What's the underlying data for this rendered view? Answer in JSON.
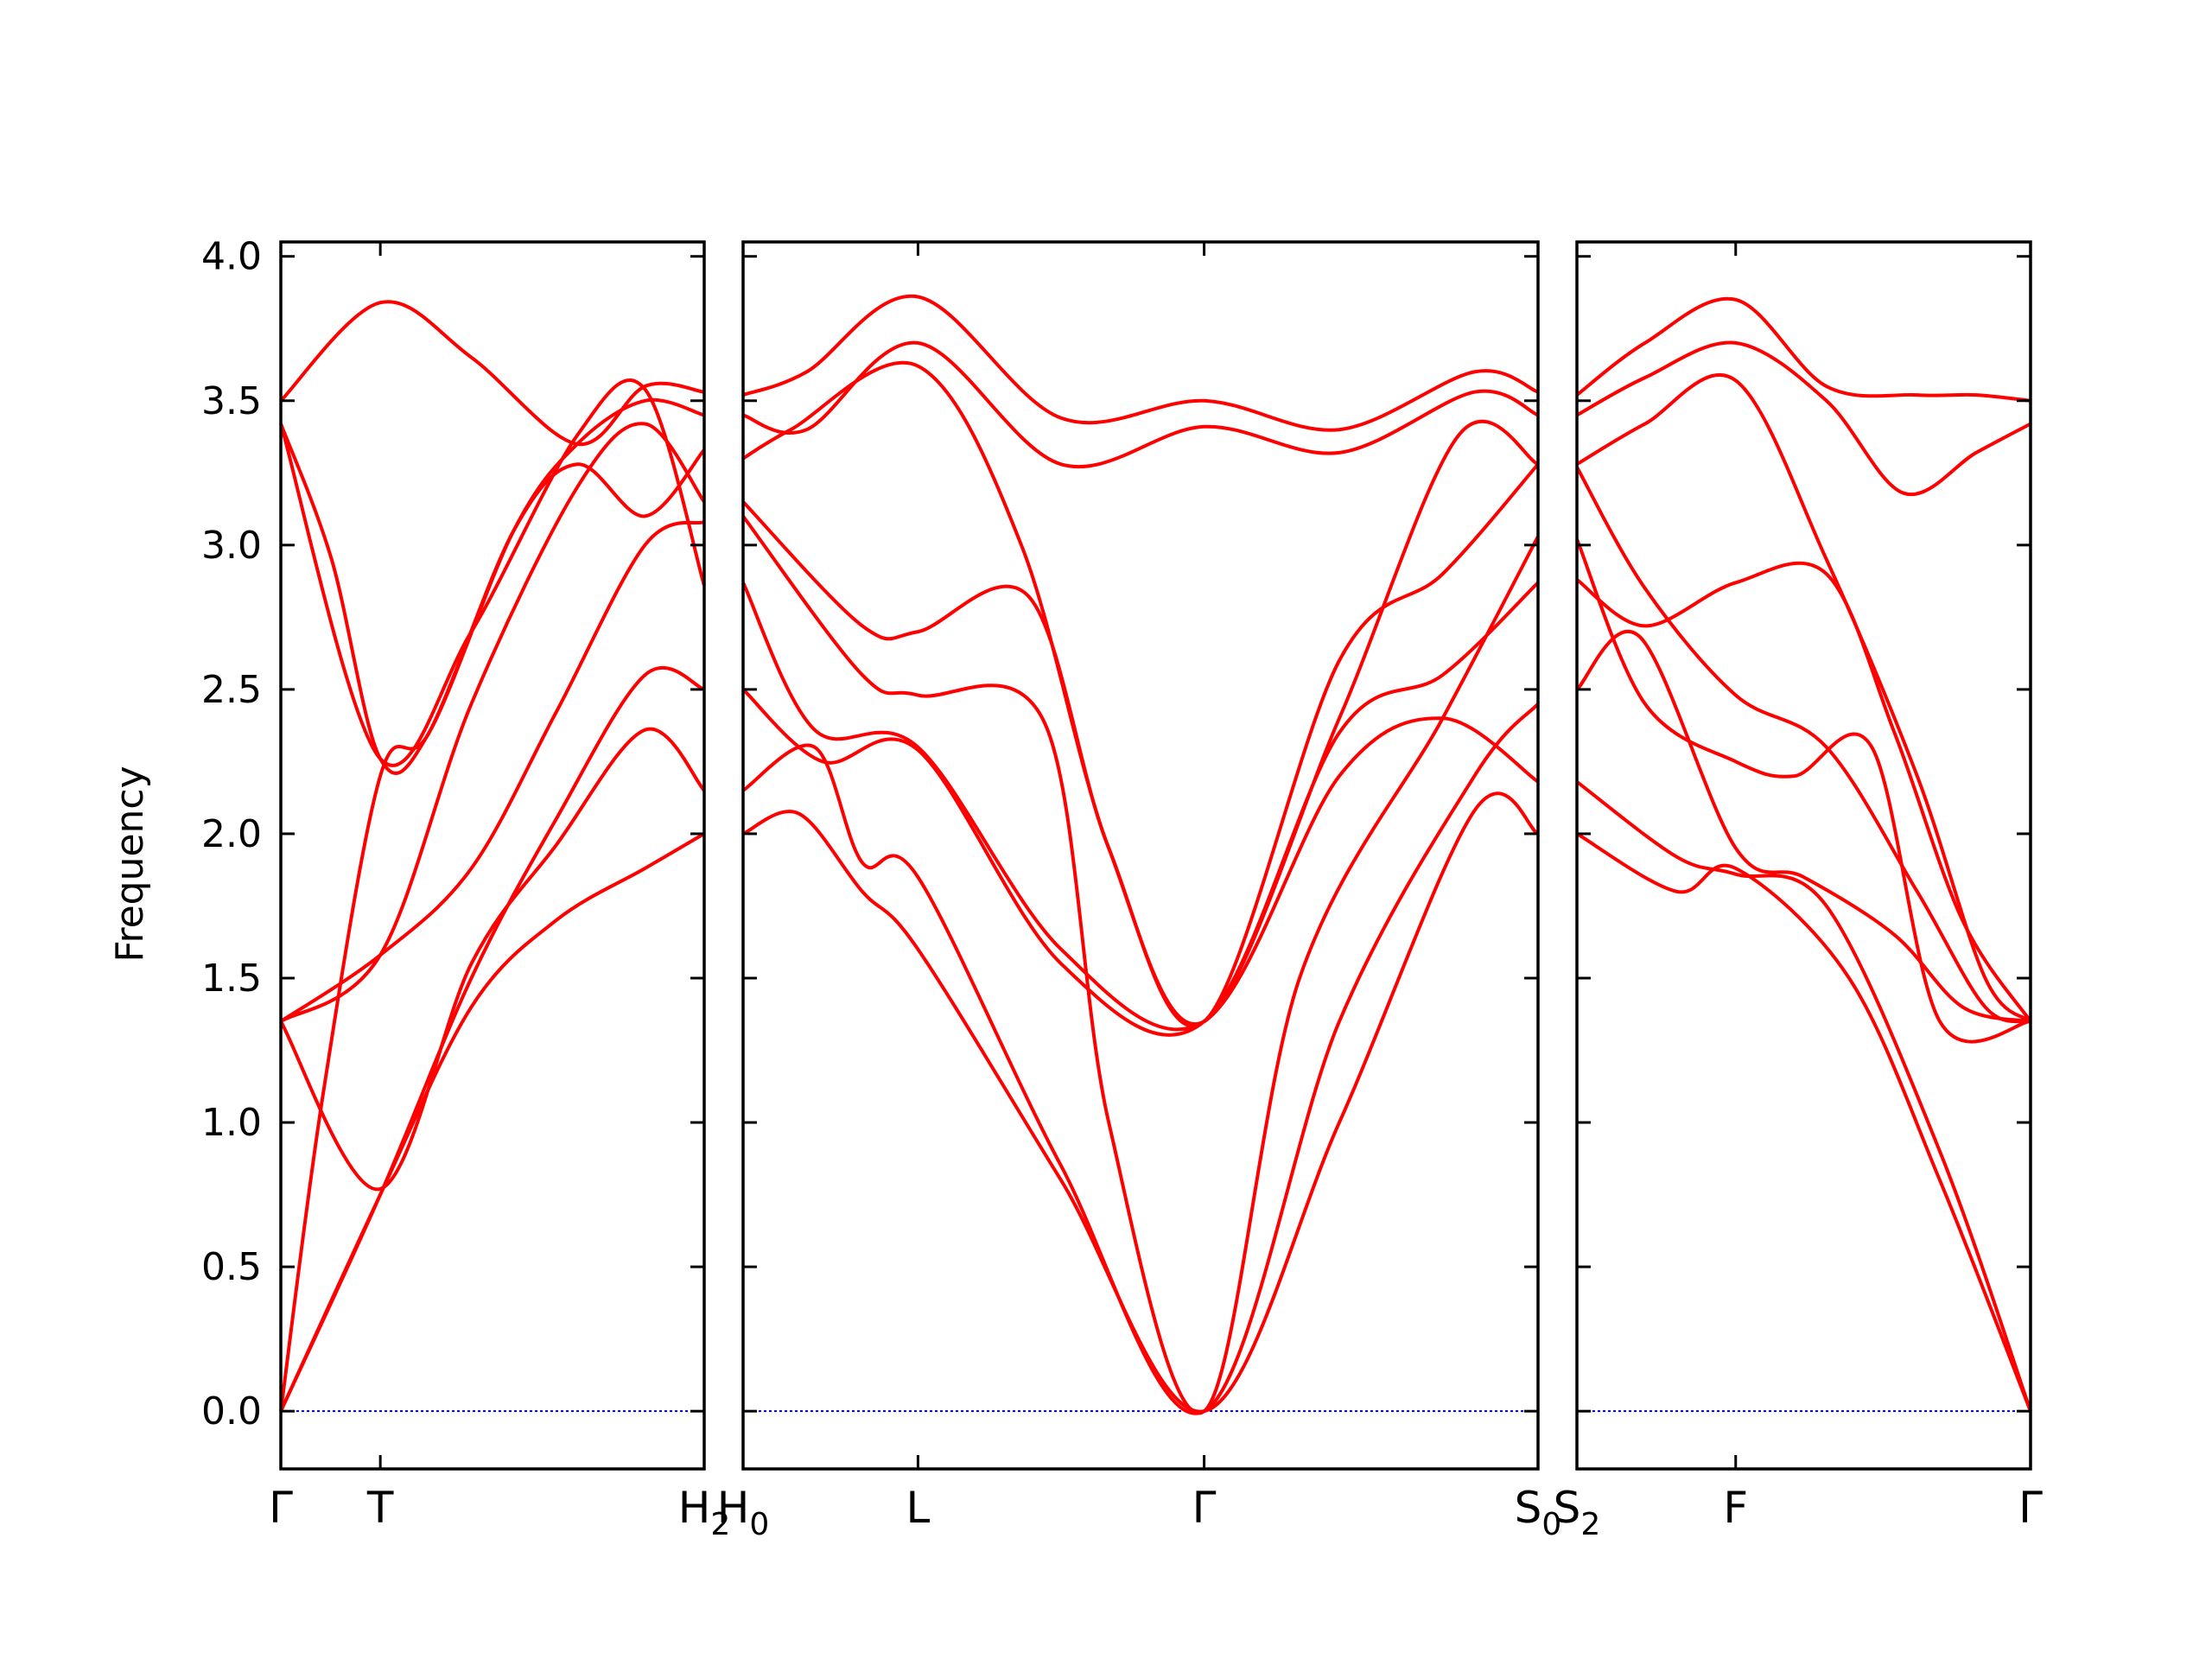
{
  "chart_data": {
    "type": "line",
    "title": "",
    "ylabel": "Frequency",
    "ylim": [
      -0.2,
      4.05
    ],
    "yticks": [
      "0.0",
      "0.5",
      "1.0",
      "1.5",
      "2.0",
      "2.5",
      "3.0",
      "3.5",
      "4.0"
    ],
    "colors": {
      "band": "#ff0000",
      "zero_line": "#0000cc",
      "frame": "#000000"
    },
    "grid": false,
    "panels": [
      {
        "name": "Γ-T-H2",
        "xlim": [
          0,
          1
        ],
        "xticks": [
          {
            "x": 0,
            "label": "Γ",
            "sub": ""
          },
          {
            "x": 0.235,
            "label": "T",
            "sub": ""
          },
          {
            "x": 1,
            "label": "H",
            "sub": "2"
          }
        ],
        "bands": [
          [
            [
              0,
              0
            ],
            [
              0.235,
              0.75
            ],
            [
              0.45,
              1.5
            ],
            [
              0.65,
              2.05
            ],
            [
              0.86,
              2.55
            ],
            [
              1,
              2.5
            ]
          ],
          [
            [
              0,
              0
            ],
            [
              0.235,
              0.75
            ],
            [
              0.45,
              1.4
            ],
            [
              0.65,
              1.7
            ],
            [
              0.86,
              1.88
            ],
            [
              1,
              2.0
            ]
          ],
          [
            [
              0,
              1.35
            ],
            [
              0.235,
              0.77
            ],
            [
              0.45,
              1.55
            ],
            [
              0.65,
              1.96
            ],
            [
              0.86,
              2.36
            ],
            [
              1,
              2.15
            ]
          ],
          [
            [
              0,
              1.35
            ],
            [
              0.235,
              1.58
            ],
            [
              0.45,
              1.88
            ],
            [
              0.65,
              2.42
            ],
            [
              0.86,
              3.0
            ],
            [
              1,
              3.08
            ]
          ],
          [
            [
              0,
              0
            ],
            [
              0.1,
              1.1
            ],
            [
              0.235,
              2.2
            ],
            [
              0.35,
              2.35
            ],
            [
              0.55,
              3.05
            ],
            [
              0.7,
              3.28
            ],
            [
              0.86,
              3.1
            ],
            [
              1,
              3.33
            ]
          ],
          [
            [
              0,
              3.42
            ],
            [
              0.12,
              2.95
            ],
            [
              0.235,
              2.26
            ],
            [
              0.35,
              2.35
            ],
            [
              0.55,
              3.05
            ],
            [
              0.7,
              3.35
            ],
            [
              0.86,
              3.5
            ],
            [
              1,
              3.45
            ]
          ],
          [
            [
              0,
              3.5
            ],
            [
              0.235,
              3.84
            ],
            [
              0.45,
              3.65
            ],
            [
              0.7,
              3.35
            ],
            [
              0.86,
              3.55
            ],
            [
              1,
              3.53
            ]
          ],
          [
            [
              0,
              1.35
            ],
            [
              0.235,
              1.58
            ],
            [
              0.45,
              2.45
            ],
            [
              0.7,
              3.2
            ],
            [
              0.86,
              3.42
            ],
            [
              1,
              3.15
            ]
          ],
          [
            [
              0,
              3.42
            ],
            [
              0.235,
              2.26
            ],
            [
              0.45,
              2.7
            ],
            [
              0.7,
              3.38
            ],
            [
              0.86,
              3.54
            ],
            [
              1,
              2.86
            ]
          ]
        ]
      },
      {
        "name": "H0-L-Γ-S0",
        "xlim": [
          0,
          1
        ],
        "xticks": [
          {
            "x": 0,
            "label": "H",
            "sub": "0"
          },
          {
            "x": 0.22,
            "label": "L",
            "sub": ""
          },
          {
            "x": 0.58,
            "label": "Γ",
            "sub": ""
          },
          {
            "x": 1,
            "label": "S",
            "sub": "0"
          }
        ],
        "bands": [
          [
            [
              0,
              2.0
            ],
            [
              0.07,
              2.07
            ],
            [
              0.15,
              1.8
            ],
            [
              0.22,
              1.6
            ],
            [
              0.4,
              0.8
            ],
            [
              0.58,
              0
            ],
            [
              0.75,
              1.0
            ],
            [
              0.92,
              2.08
            ],
            [
              1,
              2.0
            ]
          ],
          [
            [
              0,
              2.15
            ],
            [
              0.09,
              2.3
            ],
            [
              0.15,
              1.9
            ],
            [
              0.22,
              1.85
            ],
            [
              0.4,
              0.85
            ],
            [
              0.58,
              0
            ],
            [
              0.75,
              1.35
            ],
            [
              0.92,
              2.2
            ],
            [
              1,
              2.45
            ]
          ],
          [
            [
              0,
              2.5
            ],
            [
              0.1,
              2.25
            ],
            [
              0.22,
              2.29
            ],
            [
              0.4,
              1.55
            ],
            [
              0.58,
              1.35
            ],
            [
              0.75,
              2.35
            ],
            [
              0.88,
              2.55
            ],
            [
              1,
              2.87
            ]
          ],
          [
            [
              0,
              2.87
            ],
            [
              0.09,
              2.36
            ],
            [
              0.22,
              2.3
            ],
            [
              0.4,
              1.6
            ],
            [
              0.58,
              1.35
            ],
            [
              0.75,
              2.2
            ],
            [
              0.88,
              2.4
            ],
            [
              1,
              2.18
            ]
          ],
          [
            [
              0,
              3.1
            ],
            [
              0.15,
              2.55
            ],
            [
              0.22,
              2.48
            ],
            [
              0.38,
              2.38
            ],
            [
              0.46,
              1.0
            ],
            [
              0.58,
              0
            ],
            [
              0.7,
              1.5
            ],
            [
              0.88,
              2.4
            ],
            [
              1,
              3.03
            ]
          ],
          [
            [
              0,
              3.15
            ],
            [
              0.15,
              2.72
            ],
            [
              0.22,
              2.7
            ],
            [
              0.36,
              2.82
            ],
            [
              0.46,
              1.95
            ],
            [
              0.58,
              1.35
            ],
            [
              0.75,
              2.6
            ],
            [
              0.88,
              2.9
            ],
            [
              1,
              3.28
            ]
          ],
          [
            [
              0,
              3.3
            ],
            [
              0.06,
              3.4
            ],
            [
              0.22,
              3.62
            ],
            [
              0.35,
              3.0
            ],
            [
              0.46,
              1.95
            ],
            [
              0.58,
              1.35
            ],
            [
              0.75,
              2.4
            ],
            [
              0.9,
              3.38
            ],
            [
              1,
              3.28
            ]
          ],
          [
            [
              0,
              3.45
            ],
            [
              0.08,
              3.4
            ],
            [
              0.22,
              3.7
            ],
            [
              0.4,
              3.28
            ],
            [
              0.58,
              3.41
            ],
            [
              0.75,
              3.32
            ],
            [
              0.92,
              3.53
            ],
            [
              1,
              3.45
            ]
          ],
          [
            [
              0,
              3.52
            ],
            [
              0.08,
              3.6
            ],
            [
              0.22,
              3.86
            ],
            [
              0.4,
              3.44
            ],
            [
              0.58,
              3.5
            ],
            [
              0.75,
              3.4
            ],
            [
              0.92,
              3.6
            ],
            [
              1,
              3.53
            ]
          ]
        ]
      },
      {
        "name": "S2-F-Γ",
        "xlim": [
          0,
          1
        ],
        "xticks": [
          {
            "x": 0,
            "label": "S",
            "sub": "2"
          },
          {
            "x": 0.35,
            "label": "F",
            "sub": ""
          },
          {
            "x": 1,
            "label": "Γ",
            "sub": ""
          }
        ],
        "bands": [
          [
            [
              0,
              2.0
            ],
            [
              0.22,
              1.8
            ],
            [
              0.35,
              1.88
            ],
            [
              0.6,
              1.5
            ],
            [
              0.8,
              0.8
            ],
            [
              1,
              0
            ]
          ],
          [
            [
              0,
              2.18
            ],
            [
              0.22,
              1.92
            ],
            [
              0.35,
              1.86
            ],
            [
              0.55,
              1.75
            ],
            [
              0.8,
              0.9
            ],
            [
              1,
              0
            ]
          ],
          [
            [
              0,
              2.5
            ],
            [
              0.14,
              2.68
            ],
            [
              0.35,
              1.95
            ],
            [
              0.5,
              1.85
            ],
            [
              0.7,
              1.65
            ],
            [
              0.85,
              1.4
            ],
            [
              1,
              1.35
            ]
          ],
          [
            [
              0,
              2.88
            ],
            [
              0.15,
              2.72
            ],
            [
              0.35,
              2.87
            ],
            [
              0.55,
              2.9
            ],
            [
              0.7,
              2.35
            ],
            [
              0.85,
              1.7
            ],
            [
              1,
              1.35
            ]
          ],
          [
            [
              0,
              3.02
            ],
            [
              0.15,
              2.45
            ],
            [
              0.35,
              2.25
            ],
            [
              0.48,
              2.2
            ],
            [
              0.65,
              2.3
            ],
            [
              0.8,
              1.35
            ],
            [
              1,
              1.35
            ]
          ],
          [
            [
              0,
              3.27
            ],
            [
              0.15,
              2.85
            ],
            [
              0.35,
              2.48
            ],
            [
              0.55,
              2.3
            ],
            [
              0.75,
              1.8
            ],
            [
              0.9,
              1.4
            ],
            [
              1,
              1.35
            ]
          ],
          [
            [
              0,
              3.28
            ],
            [
              0.15,
              3.42
            ],
            [
              0.35,
              3.57
            ],
            [
              0.55,
              2.95
            ],
            [
              0.75,
              2.2
            ],
            [
              0.9,
              1.5
            ],
            [
              1,
              1.35
            ]
          ],
          [
            [
              0,
              3.45
            ],
            [
              0.15,
              3.58
            ],
            [
              0.35,
              3.7
            ],
            [
              0.55,
              3.5
            ],
            [
              0.72,
              3.18
            ],
            [
              0.88,
              3.32
            ],
            [
              1,
              3.42
            ]
          ],
          [
            [
              0,
              3.52
            ],
            [
              0.15,
              3.7
            ],
            [
              0.35,
              3.85
            ],
            [
              0.55,
              3.55
            ],
            [
              0.75,
              3.52
            ],
            [
              0.88,
              3.52
            ],
            [
              1,
              3.5
            ]
          ]
        ]
      }
    ]
  }
}
